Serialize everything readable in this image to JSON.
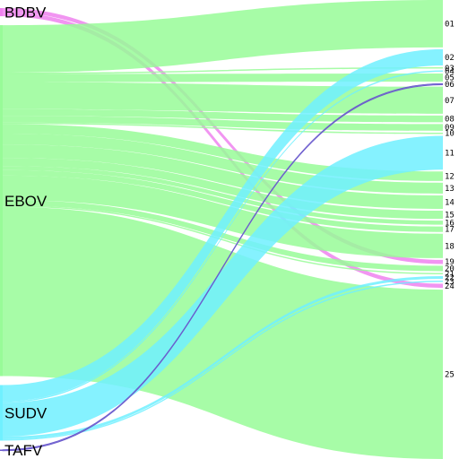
{
  "colors": {
    "BDBV": "#ee82ee",
    "EBOV": "#98fb98",
    "SUDV": "#70f0ff",
    "TAFV": "#6a5acd",
    "background": "#ffffff"
  },
  "sources": [
    {
      "id": "BDBV",
      "label": "BDBV"
    },
    {
      "id": "EBOV",
      "label": "EBOV"
    },
    {
      "id": "SUDV",
      "label": "SUDV"
    },
    {
      "id": "TAFV",
      "label": "TAFV"
    }
  ],
  "targets": [
    {
      "id": "01",
      "label": "01"
    },
    {
      "id": "02",
      "label": "02"
    },
    {
      "id": "03",
      "label": "03"
    },
    {
      "id": "04",
      "label": "04"
    },
    {
      "id": "05",
      "label": "05"
    },
    {
      "id": "06",
      "label": "06"
    },
    {
      "id": "07",
      "label": "07"
    },
    {
      "id": "08",
      "label": "08"
    },
    {
      "id": "09",
      "label": "09"
    },
    {
      "id": "10",
      "label": "10"
    },
    {
      "id": "11",
      "label": "11"
    },
    {
      "id": "12",
      "label": "12"
    },
    {
      "id": "13",
      "label": "13"
    },
    {
      "id": "14",
      "label": "14"
    },
    {
      "id": "15",
      "label": "15"
    },
    {
      "id": "16",
      "label": "16"
    },
    {
      "id": "17",
      "label": "17"
    },
    {
      "id": "18",
      "label": "18"
    },
    {
      "id": "19",
      "label": "19"
    },
    {
      "id": "20",
      "label": "20"
    },
    {
      "id": "21",
      "label": "21"
    },
    {
      "id": "22",
      "label": "22"
    },
    {
      "id": "23",
      "label": "23"
    },
    {
      "id": "24",
      "label": "24"
    },
    {
      "id": "25",
      "label": "25"
    }
  ],
  "links": [
    {
      "source": "BDBV",
      "target": "19",
      "value": 3
    },
    {
      "source": "BDBV",
      "target": "24",
      "value": 3
    },
    {
      "source": "EBOV",
      "target": "01",
      "value": 35
    },
    {
      "source": "EBOV",
      "target": "03",
      "value": 1
    },
    {
      "source": "EBOV",
      "target": "05",
      "value": 6
    },
    {
      "source": "EBOV",
      "target": "07",
      "value": 20
    },
    {
      "source": "EBOV",
      "target": "08",
      "value": 5
    },
    {
      "source": "EBOV",
      "target": "09",
      "value": 5
    },
    {
      "source": "EBOV",
      "target": "10",
      "value": 1
    },
    {
      "source": "EBOV",
      "target": "12",
      "value": 7
    },
    {
      "source": "EBOV",
      "target": "13",
      "value": 8
    },
    {
      "source": "EBOV",
      "target": "14",
      "value": 10
    },
    {
      "source": "EBOV",
      "target": "15",
      "value": 6
    },
    {
      "source": "EBOV",
      "target": "16",
      "value": 3
    },
    {
      "source": "EBOV",
      "target": "17",
      "value": 4
    },
    {
      "source": "EBOV",
      "target": "18",
      "value": 18
    },
    {
      "source": "EBOV",
      "target": "20",
      "value": 4
    },
    {
      "source": "EBOV",
      "target": "21",
      "value": 1
    },
    {
      "source": "EBOV",
      "target": "25",
      "value": 125
    },
    {
      "source": "SUDV",
      "target": "02",
      "value": 12
    },
    {
      "source": "SUDV",
      "target": "04",
      "value": 1
    },
    {
      "source": "SUDV",
      "target": "11",
      "value": 25
    },
    {
      "source": "SUDV",
      "target": "22",
      "value": 2
    },
    {
      "source": "SUDV",
      "target": "23",
      "value": 1
    },
    {
      "source": "TAFV",
      "target": "06",
      "value": 1
    }
  ]
}
